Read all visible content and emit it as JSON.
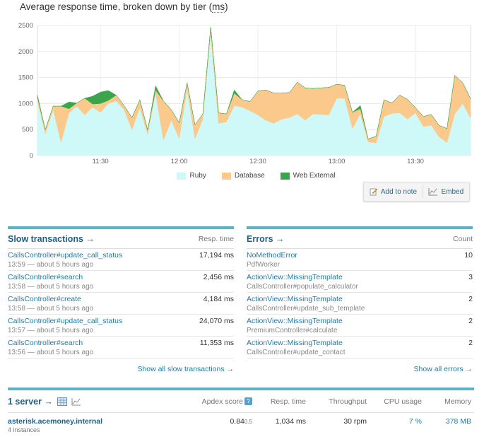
{
  "chart_title": {
    "prefix": "Average response time, broken down by tier (",
    "unit": "ms",
    "suffix": ")"
  },
  "chart_data": {
    "type": "area",
    "title": "Average response time, broken down by tier (ms)",
    "ylim": [
      0,
      2500
    ],
    "yticks": [
      "0",
      "500",
      "1000",
      "1500",
      "2000",
      "2500"
    ],
    "xticks": [
      {
        "label": "11:30",
        "at": 8
      },
      {
        "label": "12:00",
        "at": 18
      },
      {
        "label": "12:30",
        "at": 28
      },
      {
        "label": "13:00",
        "at": 38
      },
      {
        "label": "13:30",
        "at": 48
      }
    ],
    "x_count": 56,
    "series": [
      {
        "name": "Ruby",
        "color": "#cff8f8",
        "values": [
          1050,
          420,
          880,
          260,
          820,
          950,
          780,
          930,
          830,
          1000,
          1050,
          880,
          500,
          920,
          410,
          1200,
          300,
          680,
          330,
          1280,
          320,
          700,
          2350,
          620,
          650,
          960,
          930,
          860,
          780,
          680,
          620,
          700,
          730,
          800,
          680,
          800,
          790,
          780,
          1100,
          1100,
          520,
          800,
          260,
          240,
          750,
          810,
          820,
          700,
          820,
          560,
          580,
          360,
          250,
          800,
          1000,
          720
        ]
      },
      {
        "name": "Database",
        "color": "#fbc98b",
        "values": [
          70,
          80,
          70,
          690,
          80,
          60,
          320,
          60,
          170,
          60,
          110,
          80,
          230,
          150,
          80,
          60,
          750,
          200,
          300,
          120,
          270,
          100,
          120,
          200,
          150,
          240,
          140,
          180,
          460,
          580,
          580,
          500,
          480,
          610,
          620,
          490,
          510,
          530,
          270,
          250,
          310,
          100,
          60,
          130,
          320,
          200,
          340,
          380,
          100,
          190,
          210,
          220,
          270,
          740,
          400,
          370
        ]
      },
      {
        "name": "Web External",
        "color": "#3aa54a",
        "values": [
          40,
          0,
          0,
          0,
          130,
          0,
          0,
          150,
          220,
          190,
          0,
          0,
          0,
          0,
          0,
          80,
          0,
          0,
          0,
          0,
          0,
          0,
          0,
          0,
          0,
          60,
          0,
          0,
          0,
          0,
          0,
          0,
          0,
          0,
          0,
          0,
          0,
          0,
          0,
          0,
          0,
          60,
          0,
          0,
          0,
          0,
          0,
          0,
          0,
          0,
          0,
          0,
          0,
          0,
          0,
          0
        ]
      }
    ]
  },
  "legend": [
    {
      "label": "Ruby",
      "color": "#cff8f8"
    },
    {
      "label": "Database",
      "color": "#fbc98b"
    },
    {
      "label": "Web External",
      "color": "#3aa54a"
    }
  ],
  "note": {
    "add_label": "Add to note",
    "embed_label": "Embed"
  },
  "slow": {
    "title": "Slow transactions →",
    "col": "Resp. time",
    "rows": [
      {
        "name": "CallsController#update_call_status",
        "sub": "13:59 — about 5 hours ago",
        "value": "17,194  ms"
      },
      {
        "name": "CallsController#search",
        "sub": "13:58 — about 5 hours ago",
        "value": "2,456  ms"
      },
      {
        "name": "CallsController#create",
        "sub": "13:58 — about 5 hours ago",
        "value": "4,184  ms"
      },
      {
        "name": "CallsController#update_call_status",
        "sub": "13:57 — about 5 hours ago",
        "value": "24,070  ms"
      },
      {
        "name": "CallsController#search",
        "sub": "13:56 — about 5 hours ago",
        "value": "11,353  ms"
      }
    ],
    "show_all": "Show all slow transactions →"
  },
  "errors": {
    "title": "Errors →",
    "col": "Count",
    "rows": [
      {
        "name": "NoMethodError",
        "sub": "PdfWorker",
        "value": "10"
      },
      {
        "name": "ActionView::MissingTemplate",
        "sub": "CallsController#populate_calculator",
        "value": "3"
      },
      {
        "name": "ActionView::MissingTemplate",
        "sub": "CallsController#update_sub_template",
        "value": "2"
      },
      {
        "name": "ActionView::MissingTemplate",
        "sub": "PremiumController#calculate",
        "value": "2"
      },
      {
        "name": "ActionView::MissingTemplate",
        "sub": "CallsController#update_contact",
        "value": "2"
      }
    ],
    "show_all": "Show all errors →"
  },
  "servers": {
    "title": "1 server →",
    "cols": {
      "apdex": "Apdex score",
      "apdex_badge": "?",
      "resp": "Resp. time",
      "thr": "Throughput",
      "cpu": "CPU usage",
      "mem": "Memory"
    },
    "row": {
      "name": "asterisk.acemoney.internal",
      "sub": "4 instances",
      "apdex": "0.84",
      "apdex_sub": "0.5",
      "resp": "1,034 ms",
      "thr": "30 rpm",
      "cpu": "7 %",
      "mem": "378 MB"
    }
  }
}
